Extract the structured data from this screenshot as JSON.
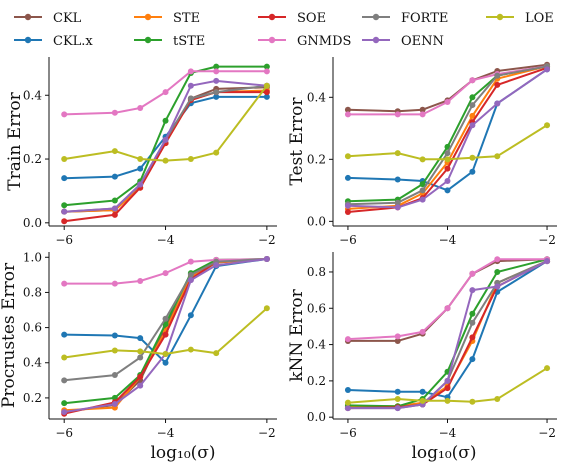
{
  "figure": {
    "legend_entries": [
      {
        "name": "CKL",
        "color": "#8c564b"
      },
      {
        "name": "CKL.x",
        "color": "#1f77b4"
      },
      {
        "name": "STE",
        "color": "#ff7f0e"
      },
      {
        "name": "tSTE",
        "color": "#2ca02c"
      },
      {
        "name": "SOE",
        "color": "#d62728"
      },
      {
        "name": "GNMDS",
        "color": "#e377c2"
      },
      {
        "name": "FORTE",
        "color": "#7f7f7f"
      },
      {
        "name": "OENN",
        "color": "#9467bd"
      },
      {
        "name": "LOE",
        "color": "#bcbd22"
      }
    ],
    "xlabel": "log₁₀(σ)"
  },
  "chart_data": [
    {
      "type": "line",
      "ylabel": "Train Error",
      "xlim": [
        -6.3,
        -1.8
      ],
      "ylim": [
        -0.01,
        0.52
      ],
      "xticks": [
        -6,
        -4,
        -2
      ],
      "xtick_labels": [
        "−6",
        "−4",
        "−2"
      ],
      "yticks": [
        0.0,
        0.2,
        0.4
      ],
      "ytick_labels": [
        "0.0",
        "0.2",
        "0.4"
      ],
      "x": [
        -6,
        -5,
        -4.5,
        -4,
        -3.5,
        -3,
        -2
      ],
      "series": [
        {
          "name": "CKL",
          "color": "#8c564b",
          "values": [
            0.035,
            0.04,
            0.12,
            0.25,
            0.39,
            0.42,
            0.425
          ]
        },
        {
          "name": "CKL.x",
          "color": "#1f77b4",
          "values": [
            0.14,
            0.145,
            0.17,
            0.27,
            0.375,
            0.395,
            0.395
          ]
        },
        {
          "name": "STE",
          "color": "#ff7f0e",
          "values": [
            0.035,
            0.04,
            0.11,
            0.25,
            0.385,
            0.41,
            0.415
          ]
        },
        {
          "name": "tSTE",
          "color": "#2ca02c",
          "values": [
            0.055,
            0.07,
            0.13,
            0.32,
            0.47,
            0.49,
            0.49
          ]
        },
        {
          "name": "SOE",
          "color": "#d62728",
          "values": [
            0.005,
            0.025,
            0.11,
            0.25,
            0.385,
            0.41,
            0.41
          ]
        },
        {
          "name": "GNMDS",
          "color": "#e377c2",
          "values": [
            0.34,
            0.345,
            0.36,
            0.41,
            0.475,
            0.475,
            0.475
          ]
        },
        {
          "name": "FORTE",
          "color": "#7f7f7f",
          "values": [
            0.035,
            0.045,
            0.12,
            0.26,
            0.39,
            0.41,
            0.43
          ]
        },
        {
          "name": "OENN",
          "color": "#9467bd",
          "values": [
            0.035,
            0.045,
            0.12,
            0.26,
            0.43,
            0.445,
            0.43
          ]
        },
        {
          "name": "LOE",
          "color": "#bcbd22",
          "values": [
            0.2,
            0.225,
            0.2,
            0.195,
            0.2,
            0.22,
            0.43
          ]
        }
      ]
    },
    {
      "type": "line",
      "ylabel": "Test Error",
      "xlim": [
        -6.3,
        -1.8
      ],
      "ylim": [
        -0.015,
        0.53
      ],
      "xticks": [
        -6,
        -4,
        -2
      ],
      "xtick_labels": [
        "−6",
        "−4",
        "−2"
      ],
      "yticks": [
        0.0,
        0.2,
        0.4
      ],
      "ytick_labels": [
        "0.0",
        "0.2",
        "0.4"
      ],
      "x": [
        -6,
        -5,
        -4.5,
        -4,
        -3.5,
        -3,
        -2
      ],
      "series": [
        {
          "name": "CKL",
          "color": "#8c564b",
          "values": [
            0.36,
            0.355,
            0.36,
            0.39,
            0.455,
            0.485,
            0.505
          ]
        },
        {
          "name": "CKL.x",
          "color": "#1f77b4",
          "values": [
            0.14,
            0.135,
            0.13,
            0.1,
            0.16,
            0.38,
            0.49
          ]
        },
        {
          "name": "STE",
          "color": "#ff7f0e",
          "values": [
            0.04,
            0.05,
            0.09,
            0.19,
            0.34,
            0.46,
            0.5
          ]
        },
        {
          "name": "tSTE",
          "color": "#2ca02c",
          "values": [
            0.065,
            0.07,
            0.12,
            0.24,
            0.4,
            0.47,
            0.5
          ]
        },
        {
          "name": "SOE",
          "color": "#d62728",
          "values": [
            0.03,
            0.045,
            0.075,
            0.17,
            0.32,
            0.44,
            0.495
          ]
        },
        {
          "name": "GNMDS",
          "color": "#e377c2",
          "values": [
            0.345,
            0.345,
            0.345,
            0.385,
            0.455,
            0.475,
            0.5
          ]
        },
        {
          "name": "FORTE",
          "color": "#7f7f7f",
          "values": [
            0.055,
            0.06,
            0.1,
            0.22,
            0.375,
            0.47,
            0.5
          ]
        },
        {
          "name": "OENN",
          "color": "#9467bd",
          "values": [
            0.05,
            0.045,
            0.07,
            0.13,
            0.31,
            0.38,
            0.49
          ]
        },
        {
          "name": "LOE",
          "color": "#bcbd22",
          "values": [
            0.21,
            0.22,
            0.2,
            0.2,
            0.205,
            0.21,
            0.31
          ]
        }
      ]
    },
    {
      "type": "line",
      "ylabel": "Procrustes Error",
      "xlim": [
        -6.3,
        -1.8
      ],
      "ylim": [
        0.08,
        1.03
      ],
      "xticks": [
        -6,
        -4,
        -2
      ],
      "xtick_labels": [
        "−6",
        "−4",
        "−2"
      ],
      "yticks": [
        0.2,
        0.4,
        0.6,
        0.8,
        1.0
      ],
      "ytick_labels": [
        "0.2",
        "0.4",
        "0.6",
        "0.8",
        "1.0"
      ],
      "x": [
        -6,
        -5,
        -4.5,
        -4,
        -3.5,
        -3,
        -2
      ],
      "series": [
        {
          "name": "CKL",
          "color": "#8c564b",
          "values": [
            0.12,
            0.16,
            0.3,
            0.6,
            0.88,
            0.97,
            0.99
          ]
        },
        {
          "name": "CKL.x",
          "color": "#1f77b4",
          "values": [
            0.56,
            0.555,
            0.54,
            0.4,
            0.67,
            0.95,
            0.99
          ]
        },
        {
          "name": "STE",
          "color": "#ff7f0e",
          "values": [
            0.13,
            0.145,
            0.32,
            0.58,
            0.89,
            0.97,
            0.99
          ]
        },
        {
          "name": "tSTE",
          "color": "#2ca02c",
          "values": [
            0.17,
            0.2,
            0.33,
            0.62,
            0.91,
            0.985,
            0.99
          ]
        },
        {
          "name": "SOE",
          "color": "#d62728",
          "values": [
            0.11,
            0.175,
            0.32,
            0.56,
            0.875,
            0.975,
            0.99
          ]
        },
        {
          "name": "GNMDS",
          "color": "#e377c2",
          "values": [
            0.85,
            0.85,
            0.865,
            0.91,
            0.975,
            0.985,
            0.99
          ]
        },
        {
          "name": "FORTE",
          "color": "#7f7f7f",
          "values": [
            0.3,
            0.33,
            0.43,
            0.65,
            0.9,
            0.975,
            0.99
          ]
        },
        {
          "name": "OENN",
          "color": "#9467bd",
          "values": [
            0.12,
            0.165,
            0.27,
            0.45,
            0.87,
            0.955,
            0.99
          ]
        },
        {
          "name": "LOE",
          "color": "#bcbd22",
          "values": [
            0.43,
            0.47,
            0.465,
            0.45,
            0.475,
            0.455,
            0.71
          ]
        }
      ]
    },
    {
      "type": "line",
      "ylabel": "kNN Error",
      "xlim": [
        -6.3,
        -1.8
      ],
      "ylim": [
        -0.01,
        0.91
      ],
      "xticks": [
        -6,
        -4,
        -2
      ],
      "xtick_labels": [
        "−6",
        "−4",
        "−2"
      ],
      "yticks": [
        0.0,
        0.2,
        0.4,
        0.6,
        0.8
      ],
      "ytick_labels": [
        "0.0",
        "0.2",
        "0.4",
        "0.6",
        "0.8"
      ],
      "x": [
        -6,
        -5,
        -4.5,
        -4,
        -3.5,
        -3,
        -2
      ],
      "series": [
        {
          "name": "CKL",
          "color": "#8c564b",
          "values": [
            0.42,
            0.42,
            0.46,
            0.6,
            0.79,
            0.86,
            0.87
          ]
        },
        {
          "name": "CKL.x",
          "color": "#1f77b4",
          "values": [
            0.15,
            0.14,
            0.14,
            0.11,
            0.32,
            0.69,
            0.86
          ]
        },
        {
          "name": "STE",
          "color": "#ff7f0e",
          "values": [
            0.06,
            0.06,
            0.08,
            0.17,
            0.42,
            0.74,
            0.86
          ]
        },
        {
          "name": "tSTE",
          "color": "#2ca02c",
          "values": [
            0.065,
            0.06,
            0.1,
            0.25,
            0.57,
            0.8,
            0.87
          ]
        },
        {
          "name": "SOE",
          "color": "#d62728",
          "values": [
            0.05,
            0.055,
            0.07,
            0.16,
            0.44,
            0.72,
            0.86
          ]
        },
        {
          "name": "GNMDS",
          "color": "#e377c2",
          "values": [
            0.43,
            0.445,
            0.47,
            0.6,
            0.79,
            0.87,
            0.87
          ]
        },
        {
          "name": "FORTE",
          "color": "#7f7f7f",
          "values": [
            0.05,
            0.05,
            0.07,
            0.2,
            0.52,
            0.74,
            0.86
          ]
        },
        {
          "name": "OENN",
          "color": "#9467bd",
          "values": [
            0.05,
            0.05,
            0.07,
            0.2,
            0.7,
            0.72,
            0.86
          ]
        },
        {
          "name": "LOE",
          "color": "#bcbd22",
          "values": [
            0.08,
            0.1,
            0.09,
            0.09,
            0.085,
            0.1,
            0.27
          ]
        }
      ]
    }
  ]
}
